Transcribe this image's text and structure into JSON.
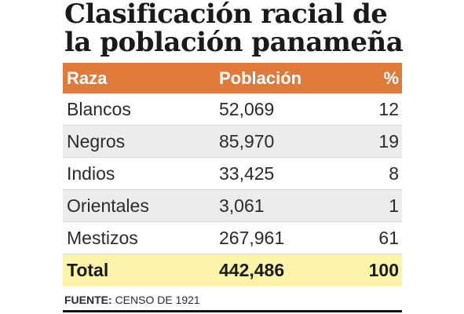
{
  "title": "Clasificación racial de la población panameña",
  "chart_data": {
    "type": "table",
    "columns": [
      "Raza",
      "Población",
      "%"
    ],
    "rows": [
      {
        "raza": "Blancos",
        "poblacion": "52,069",
        "pct": "12"
      },
      {
        "raza": "Negros",
        "poblacion": "85,970",
        "pct": "19"
      },
      {
        "raza": "Indios",
        "poblacion": "33,425",
        "pct": "8"
      },
      {
        "raza": "Orientales",
        "poblacion": "3,061",
        "pct": "1"
      },
      {
        "raza": "Mestizos",
        "poblacion": "267,961",
        "pct": "61"
      }
    ],
    "total": {
      "label": "Total",
      "poblacion": "442,486",
      "pct": "100"
    }
  },
  "source": {
    "label": "FUENTE:",
    "text": "CENSO DE 1921"
  },
  "colors": {
    "header_bg": "#e07a3a",
    "total_bg": "#fbf3a8",
    "shaded_row": "#ececec"
  }
}
